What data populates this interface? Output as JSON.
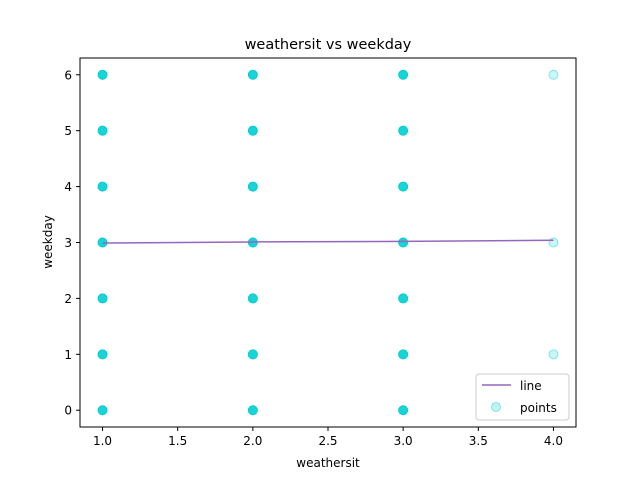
{
  "chart_data": {
    "type": "scatter",
    "title": "weathersit vs weekday",
    "xlabel": "weathersit",
    "ylabel": "weekday",
    "xlim": [
      0.85,
      4.15
    ],
    "ylim": [
      -0.3,
      6.3
    ],
    "xticks": [
      1.0,
      1.5,
      2.0,
      2.5,
      3.0,
      3.5,
      4.0
    ],
    "xtick_labels": [
      "1.0",
      "1.5",
      "2.0",
      "2.5",
      "3.0",
      "3.5",
      "4.0"
    ],
    "yticks": [
      0,
      1,
      2,
      3,
      4,
      5,
      6
    ],
    "ytick_labels": [
      "0",
      "1",
      "2",
      "3",
      "4",
      "5",
      "6"
    ],
    "grid": false,
    "legend_position": "bottom-right",
    "series": [
      {
        "name": "line",
        "kind": "line",
        "color": "#9467bd",
        "x": [
          1.0,
          2.0,
          3.0,
          4.0
        ],
        "y": [
          2.99,
          3.01,
          3.02,
          3.04
        ]
      },
      {
        "name": "points",
        "kind": "scatter",
        "color": "#00ced1",
        "points": [
          [
            1,
            0
          ],
          [
            1,
            1
          ],
          [
            1,
            2
          ],
          [
            1,
            3
          ],
          [
            1,
            4
          ],
          [
            1,
            5
          ],
          [
            1,
            6
          ],
          [
            2,
            0
          ],
          [
            2,
            1
          ],
          [
            2,
            2
          ],
          [
            2,
            3
          ],
          [
            2,
            4
          ],
          [
            2,
            5
          ],
          [
            2,
            6
          ],
          [
            3,
            0
          ],
          [
            3,
            1
          ],
          [
            3,
            2
          ],
          [
            3,
            3
          ],
          [
            3,
            4
          ],
          [
            3,
            5
          ],
          [
            3,
            6
          ],
          [
            4,
            1
          ],
          [
            4,
            3
          ],
          [
            4,
            6
          ]
        ],
        "faint_points": [
          [
            4,
            1
          ],
          [
            4,
            3
          ],
          [
            4,
            6
          ]
        ]
      }
    ]
  }
}
